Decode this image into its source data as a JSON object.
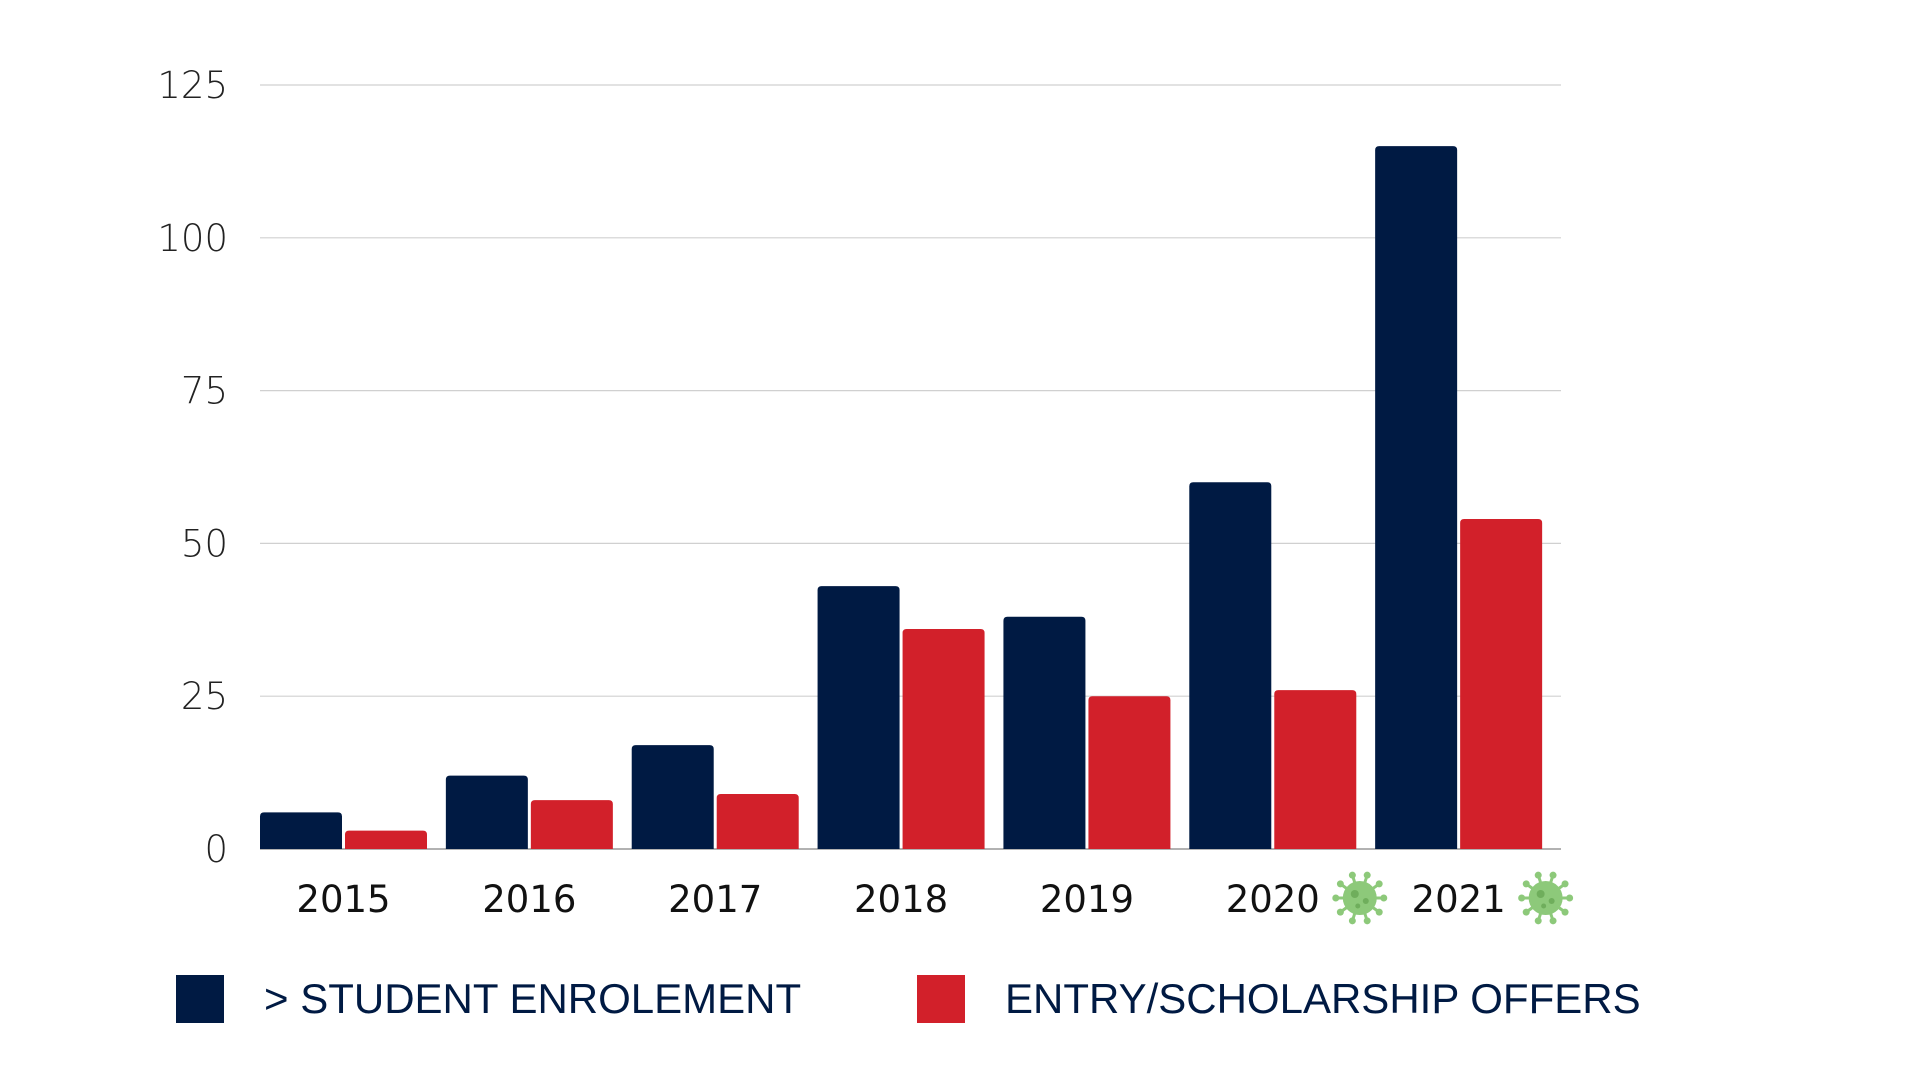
{
  "chart_data": {
    "type": "bar",
    "title": "",
    "xlabel": "",
    "ylabel": "",
    "categories": [
      "2015",
      "2016",
      "2017",
      "2018",
      "2019",
      "2020",
      "2021"
    ],
    "category_icons": [
      null,
      null,
      null,
      null,
      null,
      "virus-icon",
      "virus-icon"
    ],
    "series": [
      {
        "name": "> STUDENT ENROLEMENT",
        "color": "#001a43",
        "values": [
          6,
          12,
          17,
          43,
          38,
          60,
          115
        ]
      },
      {
        "name": "ENTRY/SCHOLARSHIP OFFERS",
        "color": "#d2202a",
        "values": [
          3,
          8,
          9,
          36,
          25,
          26,
          54
        ]
      }
    ],
    "ylim": [
      0,
      125
    ],
    "yticks": [
      0,
      25,
      50,
      75,
      100,
      125
    ],
    "grid": true,
    "legend_position": "bottom",
    "icon_color": "#8dc97a"
  }
}
